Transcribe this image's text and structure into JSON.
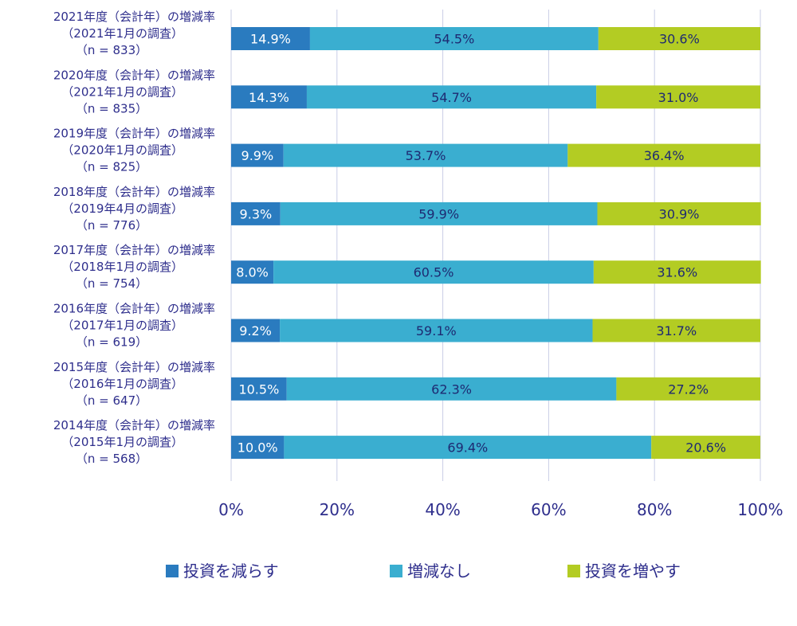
{
  "chart_data": {
    "type": "bar",
    "orientation": "horizontal",
    "stacked": true,
    "categories": [
      [
        "2021年度（会計年）の増減率",
        "（2021年1月の調査）",
        "（n = 833）"
      ],
      [
        "2020年度（会計年）の増減率",
        "（2021年1月の調査）",
        "（n = 835）"
      ],
      [
        "2019年度（会計年）の増減率",
        "（2020年1月の調査）",
        "（n = 825）"
      ],
      [
        "2018年度（会計年）の増減率",
        "（2019年4月の調査）",
        "（n = 776）"
      ],
      [
        "2017年度（会計年）の増減率",
        "（2018年1月の調査）",
        "（n = 754）"
      ],
      [
        "2016年度（会計年）の増減率",
        "（2017年1月の調査）",
        "（n = 619）"
      ],
      [
        "2015年度（会計年）の増減率",
        "（2016年1月の調査）",
        "（n = 647）"
      ],
      [
        "2014年度（会計年）の増減率",
        "（2015年1月の調査）",
        "（n = 568）"
      ]
    ],
    "series": [
      {
        "name": "投資を減らす",
        "color": "#2a7bbf",
        "values": [
          14.9,
          14.3,
          9.9,
          9.3,
          8.0,
          9.2,
          10.5,
          10.0
        ],
        "labels": [
          "14.9%",
          "14.3%",
          "9.9%",
          "9.3%",
          "8.0%",
          "9.2%",
          "10.5%",
          "10.0%"
        ]
      },
      {
        "name": "増減なし",
        "color": "#3aaed0",
        "values": [
          54.5,
          54.7,
          53.7,
          59.9,
          60.5,
          59.1,
          62.3,
          69.4
        ],
        "labels": [
          "54.5%",
          "54.7%",
          "53.7%",
          "59.9%",
          "60.5%",
          "59.1%",
          "62.3%",
          "69.4%"
        ]
      },
      {
        "name": "投資を増やす",
        "color": "#b3cc23",
        "values": [
          30.6,
          31.0,
          36.4,
          30.9,
          31.6,
          31.7,
          27.2,
          20.6
        ],
        "labels": [
          "30.6%",
          "31.0%",
          "36.4%",
          "30.9%",
          "31.6%",
          "31.7%",
          "27.2%",
          "20.6%"
        ]
      }
    ],
    "xlim": [
      0,
      100
    ],
    "xticks": [
      0,
      20,
      40,
      60,
      80,
      100
    ],
    "xtick_labels": [
      "0%",
      "20%",
      "40%",
      "60%",
      "80%",
      "100%"
    ],
    "grid": true,
    "legend_position": "bottom",
    "title": "",
    "xlabel": "",
    "ylabel": ""
  }
}
